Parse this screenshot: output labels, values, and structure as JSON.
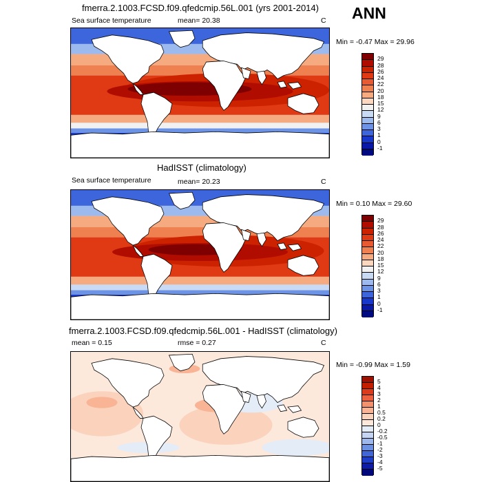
{
  "header": {
    "season": "ANN"
  },
  "panels": [
    {
      "title": "fmerra.2.1003.FCSD.f09.qfedcmip.56L.001 (yrs 2001-2014)",
      "left_label": "Sea surface temperature",
      "stat_label": "mean=  20.38",
      "units": "C",
      "minmax": "Min =  -0.47 Max =  29.96",
      "colorbar": {
        "labels": [
          "29",
          "28",
          "26",
          "24",
          "22",
          "20",
          "18",
          "15",
          "12",
          "9",
          "6",
          "3",
          "1",
          "0",
          "-1"
        ],
        "colors": [
          "#7f0000",
          "#b00d00",
          "#cc2200",
          "#df3a14",
          "#e85a32",
          "#ef8050",
          "#f5aa80",
          "#fbd7c0",
          "#f1f1f1",
          "#c8daf4",
          "#9dbaee",
          "#6d93e6",
          "#3e66dc",
          "#1838cc",
          "#0a18a8",
          "#000a80"
        ]
      }
    },
    {
      "title": "HadISST (climatology)",
      "left_label": "Sea surface temperature",
      "stat_label": "mean=  20.23",
      "units": "C",
      "minmax": "Min =  0.10 Max =  29.60",
      "colorbar": {
        "labels": [
          "29",
          "28",
          "26",
          "24",
          "22",
          "20",
          "18",
          "15",
          "12",
          "9",
          "6",
          "3",
          "1",
          "0",
          "-1"
        ],
        "colors": [
          "#7f0000",
          "#b00d00",
          "#cc2200",
          "#df3a14",
          "#e85a32",
          "#ef8050",
          "#f5aa80",
          "#fbd7c0",
          "#f1f1f1",
          "#c8daf4",
          "#9dbaee",
          "#6d93e6",
          "#3e66dc",
          "#1838cc",
          "#0a18a8",
          "#000a80"
        ]
      }
    },
    {
      "title": "fmerra.2.1003.FCSD.f09.qfedcmip.56L.001 - HadISST (climatology)",
      "left_label": "mean =   0.15",
      "stat_label": "rmse =   0.27",
      "units": "C",
      "minmax": "Min =  -0.99 Max =   1.59",
      "colorbar": {
        "labels": [
          "5",
          "4",
          "3",
          "2",
          "1",
          "0.5",
          "0.2",
          "0",
          "-0.2",
          "-0.5",
          "-1",
          "-2",
          "-3",
          "-4",
          "-5"
        ],
        "colors": [
          "#a01000",
          "#c41e00",
          "#dc3a1a",
          "#ec6040",
          "#f4906c",
          "#f8b494",
          "#fbd2bc",
          "#fde8dc",
          "#e4ecf8",
          "#c6d6f2",
          "#9cb8ec",
          "#6c90e2",
          "#4066d8",
          "#1e3ec8",
          "#0c1ca8",
          "#00087c"
        ]
      }
    }
  ]
}
